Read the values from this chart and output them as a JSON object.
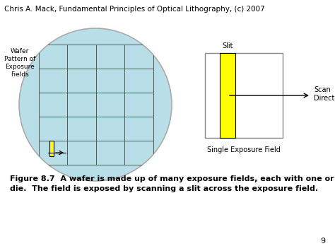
{
  "title_text": "Chris A. Mack, Fundamental Principles of Optical Lithography, (c) 2007",
  "title_fontsize": 7.5,
  "wafer_label": "Wafer\nPattern of\nExposure\nFields",
  "wafer_color": "#b8dfe8",
  "wafer_edge_color": "#aaaaaa",
  "grid_color": "#555555",
  "grid_linewidth": 0.7,
  "slit_label": "Slit",
  "scan_label": "Scan\nDirection",
  "single_label": "Single Exposure Field",
  "figure_caption": "Figure 8.7  A wafer is made up of many exposure fields, each with one or more\ndie.  The field is exposed by scanning a slit across the exposure field.",
  "page_number": "9",
  "yellow_color": "#ffff00",
  "background": "#ffffff"
}
